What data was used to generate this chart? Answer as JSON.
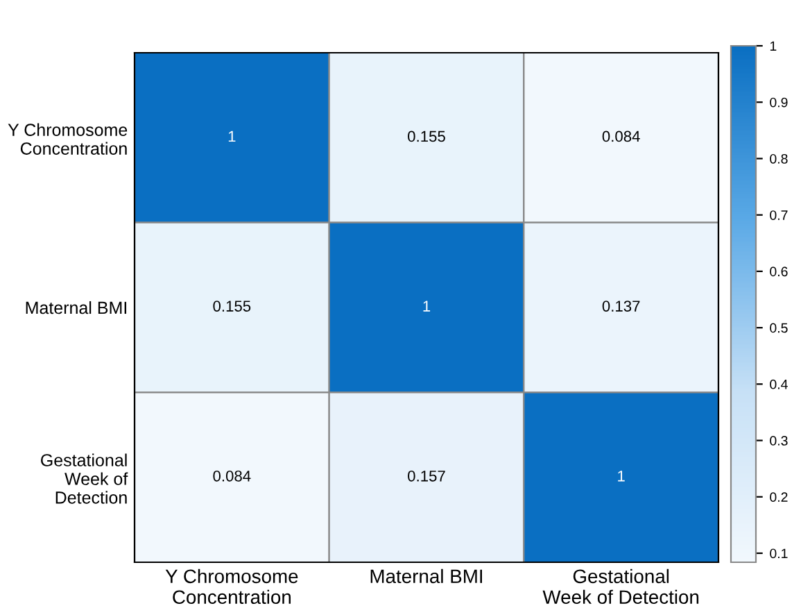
{
  "chart_data": {
    "type": "heatmap",
    "categories": [
      "Y Chromosome\nConcentration",
      "Maternal BMI",
      "Gestational\nWeek of Detection"
    ],
    "y_categories": [
      "Y Chromosome\nConcentration",
      "Maternal BMI",
      "Gestational\nWeek of\nDetection"
    ],
    "cells": [
      [
        1,
        0.155,
        0.084
      ],
      [
        0.155,
        1,
        0.137
      ],
      [
        0.084,
        0.157,
        1
      ]
    ],
    "data_labels": true,
    "clim": [
      0.084,
      1
    ],
    "cticks": [
      0.1,
      0.2,
      0.3,
      0.4,
      0.5,
      0.6,
      0.7,
      0.8,
      0.9,
      1
    ]
  }
}
